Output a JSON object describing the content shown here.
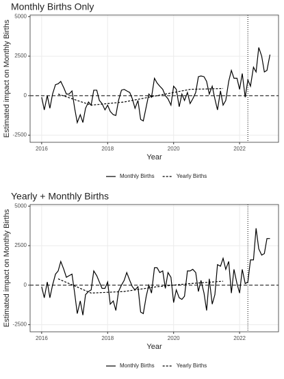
{
  "chart_data": [
    {
      "type": "line",
      "title": "Monthly Births Only",
      "x_label": "Year",
      "y_label": "Estimated impact on Monthly Births",
      "xlim": [
        2015.65,
        2023.18
      ],
      "ylim": [
        -2950,
        5100
      ],
      "xticks": [
        2016,
        2018,
        2020,
        2022
      ],
      "yticks": [
        -2500,
        0,
        2500,
        5000
      ],
      "grid": true,
      "hline": 0,
      "vline": 2022.25,
      "series": [
        {
          "name": "Monthly Births",
          "color": "#000000",
          "linestyle": "solid",
          "x": [
            2016.0,
            2016.08,
            2016.17,
            2016.25,
            2016.33,
            2016.42,
            2016.5,
            2016.58,
            2016.67,
            2016.75,
            2016.83,
            2016.92,
            2017.0,
            2017.08,
            2017.17,
            2017.25,
            2017.33,
            2017.42,
            2017.5,
            2017.58,
            2017.67,
            2017.75,
            2017.83,
            2017.92,
            2018.0,
            2018.08,
            2018.17,
            2018.25,
            2018.33,
            2018.42,
            2018.5,
            2018.58,
            2018.67,
            2018.75,
            2018.83,
            2018.92,
            2019.0,
            2019.08,
            2019.17,
            2019.25,
            2019.33,
            2019.42,
            2019.5,
            2019.58,
            2019.67,
            2019.75,
            2019.83,
            2019.92,
            2020.0,
            2020.08,
            2020.17,
            2020.25,
            2020.33,
            2020.42,
            2020.5,
            2020.58,
            2020.67,
            2020.75,
            2020.83,
            2020.92,
            2021.0,
            2021.08,
            2021.17,
            2021.25,
            2021.33,
            2021.42,
            2021.5,
            2021.58,
            2021.67,
            2021.75,
            2021.83,
            2021.92,
            2022.0,
            2022.08,
            2022.17,
            2022.25,
            2022.33,
            2022.42,
            2022.5,
            2022.58,
            2022.67,
            2022.75,
            2022.83,
            2022.92
          ],
          "values": [
            -100,
            -900,
            0,
            -800,
            100,
            700,
            750,
            900,
            500,
            100,
            100,
            300,
            -800,
            -1700,
            -1200,
            -1700,
            -800,
            -400,
            -600,
            350,
            350,
            -300,
            -500,
            -900,
            -600,
            -1000,
            -1200,
            -1250,
            -300,
            350,
            400,
            300,
            200,
            -200,
            -800,
            -300,
            -1500,
            -1600,
            -700,
            100,
            -100,
            1100,
            800,
            600,
            400,
            0,
            -200,
            -600,
            600,
            400,
            -700,
            100,
            -300,
            200,
            -500,
            -200,
            200,
            1200,
            1250,
            1200,
            900,
            100,
            600,
            -200,
            -900,
            300,
            -600,
            -300,
            900,
            1600,
            1100,
            1100,
            400,
            1400,
            -100,
            1000,
            600,
            1800,
            1500,
            3050,
            2500,
            1500,
            1600,
            2600
          ]
        },
        {
          "name": "Yearly Births",
          "color": "#000000",
          "linestyle": "dashed",
          "x": [
            2016.5,
            2017.5,
            2018.5,
            2019.5,
            2020.5,
            2021.5
          ],
          "values": [
            100,
            -600,
            -400,
            0,
            400,
            450
          ]
        }
      ]
    },
    {
      "type": "line",
      "title": "Yearly + Monthly Births",
      "x_label": "Year",
      "y_label": "Estimated impact on Monthly Births",
      "xlim": [
        2015.65,
        2023.18
      ],
      "ylim": [
        -2950,
        5100
      ],
      "xticks": [
        2016,
        2018,
        2020,
        2022
      ],
      "yticks": [
        -2500,
        0,
        2500,
        5000
      ],
      "grid": true,
      "hline": 0,
      "vline": 2022.25,
      "series": [
        {
          "name": "Monthly Births",
          "color": "#000000",
          "linestyle": "solid",
          "x": [
            2016.0,
            2016.08,
            2016.17,
            2016.25,
            2016.33,
            2016.42,
            2016.5,
            2016.58,
            2016.67,
            2016.75,
            2016.83,
            2016.92,
            2017.0,
            2017.08,
            2017.17,
            2017.25,
            2017.33,
            2017.42,
            2017.5,
            2017.58,
            2017.67,
            2017.75,
            2017.83,
            2017.92,
            2018.0,
            2018.08,
            2018.17,
            2018.25,
            2018.33,
            2018.42,
            2018.5,
            2018.58,
            2018.67,
            2018.75,
            2018.83,
            2018.92,
            2019.0,
            2019.08,
            2019.17,
            2019.25,
            2019.33,
            2019.42,
            2019.5,
            2019.58,
            2019.67,
            2019.75,
            2019.83,
            2019.92,
            2020.0,
            2020.08,
            2020.17,
            2020.25,
            2020.33,
            2020.42,
            2020.5,
            2020.58,
            2020.67,
            2020.75,
            2020.83,
            2020.92,
            2021.0,
            2021.08,
            2021.17,
            2021.25,
            2021.33,
            2021.42,
            2021.5,
            2021.58,
            2021.67,
            2021.75,
            2021.83,
            2021.92,
            2022.0,
            2022.08,
            2022.17,
            2022.25,
            2022.33,
            2022.42,
            2022.5,
            2022.58,
            2022.67,
            2022.75,
            2022.83,
            2022.92
          ],
          "values": [
            -100,
            -800,
            200,
            -800,
            0,
            700,
            900,
            1500,
            1000,
            500,
            600,
            700,
            -500,
            -1800,
            -1000,
            -1900,
            -600,
            -400,
            -300,
            900,
            600,
            200,
            -200,
            -200,
            200,
            -1200,
            -1000,
            -1600,
            -400,
            0,
            300,
            800,
            300,
            -100,
            -300,
            -100,
            -1700,
            -1800,
            -700,
            0,
            -500,
            1100,
            1100,
            800,
            900,
            -200,
            800,
            500,
            -1100,
            -300,
            -800,
            -900,
            -700,
            900,
            900,
            1000,
            800,
            -400,
            300,
            -500,
            -1600,
            400,
            -1200,
            -600,
            1300,
            1200,
            1700,
            1000,
            1500,
            -500,
            1000,
            100,
            -500,
            1000,
            100,
            200,
            1600,
            1600,
            3600,
            2300,
            1900,
            2000,
            2950,
            2950
          ]
        },
        {
          "name": "Yearly Births",
          "color": "#000000",
          "linestyle": "dashed",
          "x": [
            2016.5,
            2017.5,
            2018.5,
            2019.5,
            2020.5,
            2021.5
          ],
          "values": [
            400,
            -500,
            -400,
            -100,
            100,
            250
          ]
        }
      ]
    }
  ]
}
